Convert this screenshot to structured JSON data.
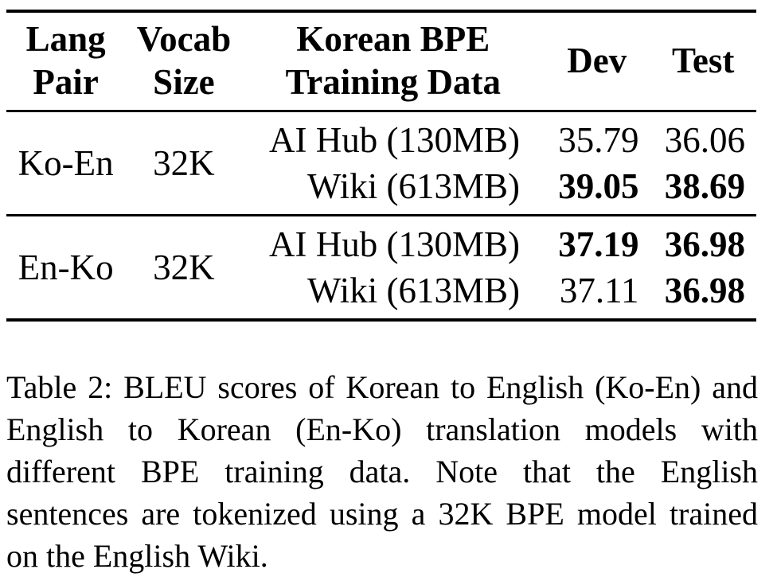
{
  "table": {
    "headers": {
      "lang_pair": [
        "Lang",
        "Pair"
      ],
      "vocab_size": [
        "Vocab",
        "Size"
      ],
      "bpe_data": [
        "Korean BPE",
        "Training Data"
      ],
      "dev": "Dev",
      "test": "Test"
    },
    "groups": [
      {
        "lang_pair": "Ko-En",
        "vocab_size": "32K",
        "rows": [
          {
            "bpe_data": "AI Hub (130MB)",
            "dev": "35.79",
            "test": "36.06",
            "dev_bold": false,
            "test_bold": false
          },
          {
            "bpe_data": "Wiki (613MB)",
            "dev": "39.05",
            "test": "38.69",
            "dev_bold": true,
            "test_bold": true
          }
        ]
      },
      {
        "lang_pair": "En-Ko",
        "vocab_size": "32K",
        "rows": [
          {
            "bpe_data": "AI Hub (130MB)",
            "dev": "37.19",
            "test": "36.98",
            "dev_bold": true,
            "test_bold": true
          },
          {
            "bpe_data": "Wiki (613MB)",
            "dev": "37.11",
            "test": "36.98",
            "dev_bold": false,
            "test_bold": true
          }
        ]
      }
    ]
  },
  "caption": "Table 2: BLEU scores of Korean to English (Ko-En) and English to Korean (En-Ko) translation models with different BPE training data. Note that the English sentences are tokenized using a 32K BPE model trained on the English Wiki."
}
